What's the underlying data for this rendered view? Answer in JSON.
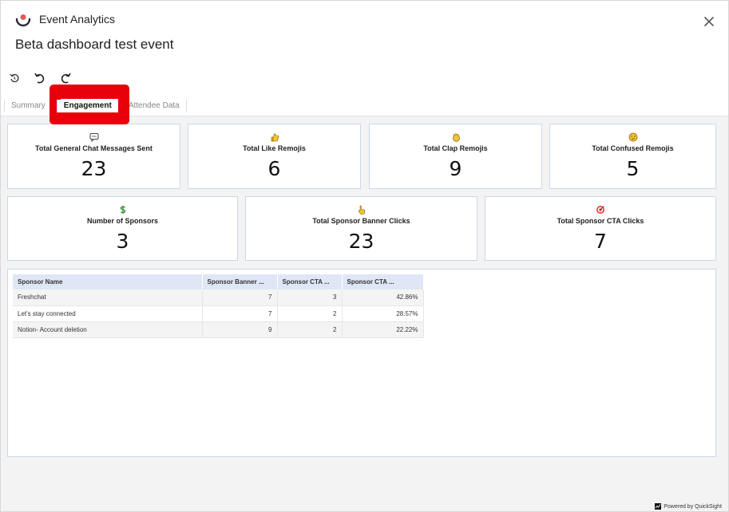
{
  "header": {
    "app_name": "Event Analytics",
    "event_title": "Beta dashboard test event",
    "logo_color": "#e8555a"
  },
  "toolbar": {
    "icons": [
      "reset-icon",
      "undo-icon",
      "redo-icon"
    ]
  },
  "tabs": [
    {
      "label": "Summary",
      "active": false
    },
    {
      "label": "Engagement",
      "active": true
    },
    {
      "label": "Attendee Data",
      "active": false
    }
  ],
  "kpis_row1": [
    {
      "label": "Total General Chat Messages Sent",
      "value": "23",
      "icon": "speech-bubble-icon"
    },
    {
      "label": "Total Like Remojis",
      "value": "6",
      "icon": "thumbs-up-icon"
    },
    {
      "label": "Total Clap Remojis",
      "value": "9",
      "icon": "clap-icon"
    },
    {
      "label": "Total Confused Remojis",
      "value": "5",
      "icon": "confused-face-icon"
    }
  ],
  "kpis_row2": [
    {
      "label": "Number of Sponsors",
      "value": "3",
      "icon": "dollar-icon"
    },
    {
      "label": "Total Sponsor Banner Clicks",
      "value": "23",
      "icon": "pointing-hand-icon"
    },
    {
      "label": "Total Sponsor CTA Clicks",
      "value": "7",
      "icon": "target-icon"
    }
  ],
  "sponsor_table": {
    "columns": [
      "Sponsor Name",
      "Sponsor Banner ...",
      "Sponsor CTA ...",
      "Sponsor CTA ..."
    ],
    "rows": [
      [
        "Freshchat",
        "7",
        "3",
        "42.86%"
      ],
      [
        "Let's stay connected",
        "7",
        "2",
        "28.57%"
      ],
      [
        "Notion- Account deletion",
        "9",
        "2",
        "22.22%"
      ]
    ]
  },
  "footer": {
    "powered_by": "Powered by QuickSight"
  },
  "colors": {
    "accent_highlight": "#e8000a",
    "panel_border": "#cdd6ea",
    "table_header": "#dfe7f6"
  }
}
